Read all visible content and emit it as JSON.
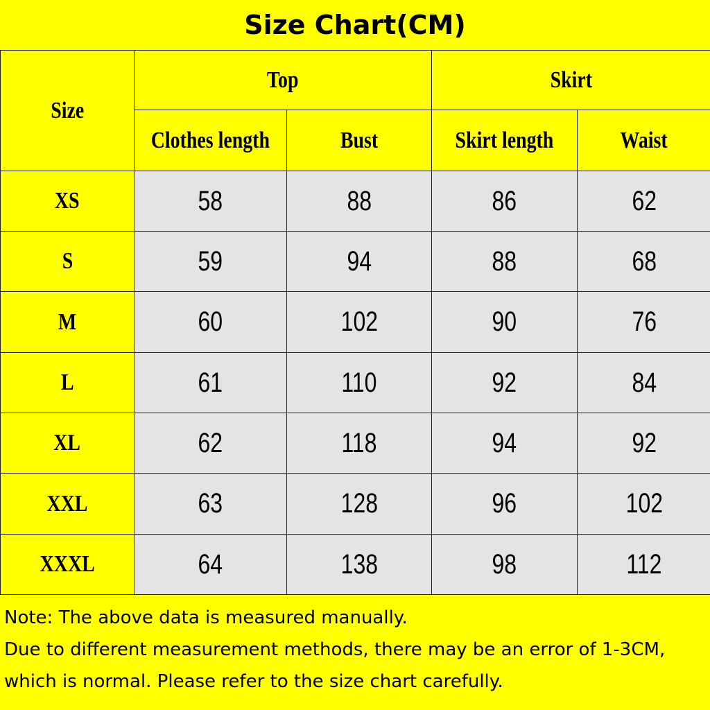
{
  "header": {
    "title": "Size Chart(CM)"
  },
  "table": {
    "size_header": "Size",
    "groups": [
      "Top",
      "Skirt"
    ],
    "columns": [
      "Clothes length",
      "Bust",
      "Skirt length",
      "Waist"
    ],
    "rows": [
      [
        "XS",
        58,
        88,
        86,
        62
      ],
      [
        "S",
        59,
        94,
        88,
        68
      ],
      [
        "M",
        60,
        102,
        90,
        76
      ],
      [
        "L",
        61,
        110,
        92,
        84
      ],
      [
        "XL",
        62,
        118,
        94,
        92
      ],
      [
        "XXL",
        63,
        128,
        96,
        102
      ],
      [
        "XXXL",
        64,
        138,
        98,
        112
      ]
    ]
  },
  "notes": [
    "Note: The above data is measured manually.",
    "Due to different measurement methods, there may be an error of 1-3CM,",
    "which is normal. Please refer to the size chart carefully."
  ]
}
